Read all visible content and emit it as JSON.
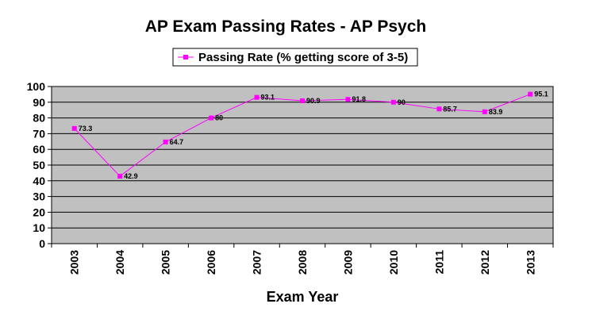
{
  "chart_data": {
    "type": "line",
    "title": "AP Exam Passing Rates - AP Psych",
    "xlabel": "Exam Year",
    "ylabel": "",
    "categories": [
      "2003",
      "2004",
      "2005",
      "2006",
      "2007",
      "2008",
      "2009",
      "2010",
      "2011",
      "2012",
      "2013"
    ],
    "series": [
      {
        "name": "Passing Rate (% getting score of 3-5)",
        "values": [
          73.3,
          42.9,
          64.7,
          80,
          93.1,
          90.9,
          91.8,
          90,
          85.7,
          83.9,
          95.1
        ],
        "labels": [
          "73.3",
          "42.9",
          "64.7",
          "80",
          "93.1",
          "90.9",
          "91.8",
          "90",
          "85.7",
          "83.9",
          "95.1"
        ]
      }
    ],
    "ylim": [
      0,
      100
    ],
    "yticks": [
      0,
      10,
      20,
      30,
      40,
      50,
      60,
      70,
      80,
      90,
      100
    ],
    "grid": true,
    "legend": "top-center",
    "colors": {
      "series": "#ff00ff",
      "plot_background": "#c0c0c0",
      "grid": "#000000"
    }
  }
}
